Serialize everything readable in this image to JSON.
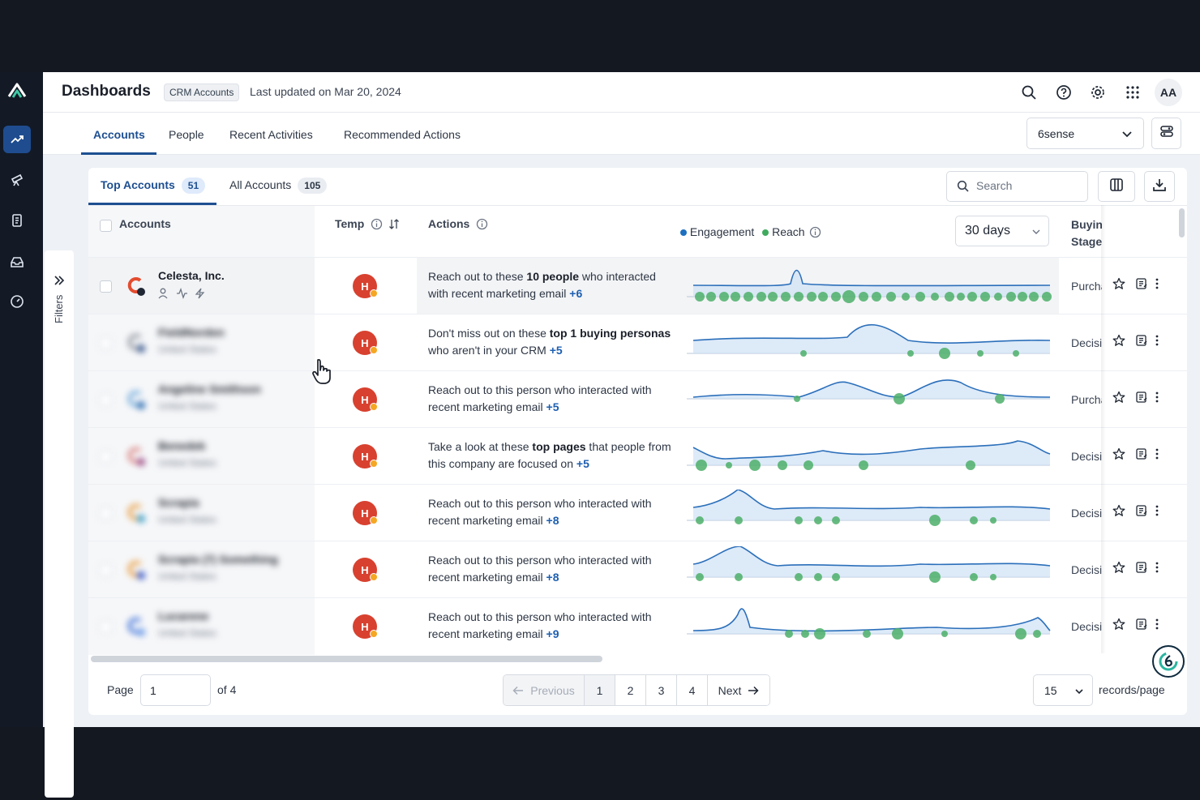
{
  "app": {
    "title": "Dashboards",
    "crm_badge": "CRM Accounts",
    "last_updated": "Last updated on Mar 20, 2024",
    "avatar_initials": "AA"
  },
  "nav_tabs": [
    "Accounts",
    "People",
    "Recent Activities",
    "Recommended Actions"
  ],
  "org_select": "6sense",
  "filters_label": "Filters",
  "account_tabs": [
    {
      "label": "Top Accounts",
      "count": "51"
    },
    {
      "label": "All Accounts",
      "count": "105"
    }
  ],
  "search_placeholder": "Search",
  "columns": {
    "accounts": "Accounts",
    "temp": "Temp",
    "actions": "Actions",
    "engagement": "Engagement",
    "reach": "Reach",
    "range": "30 days",
    "stage_line1": "Buying",
    "stage_line2": "Stage"
  },
  "colors": {
    "engagement": "#1d6fbf",
    "reach": "#3faa5e",
    "hot": "#d8412f",
    "accent": "#1d4f91"
  },
  "rows": [
    {
      "name": "Celesta, Inc.",
      "sub": "",
      "temp": "H",
      "action_pre": "Reach out to these ",
      "action_bold": "10 people",
      "action_post": " who interacted with recent marketing email ",
      "plus": "+6",
      "stage": "Purchase"
    },
    {
      "name": "FieldNorden",
      "sub": "United States",
      "temp": "H",
      "action_pre": "Don't miss out on these ",
      "action_bold": "top 1 buying personas",
      "action_post": " who aren't in your CRM ",
      "plus": "+5",
      "stage": "Decision"
    },
    {
      "name": "Angeline Smithson",
      "sub": "United States",
      "temp": "H",
      "action_pre": "Reach out to this person who interacted with recent marketing email ",
      "action_bold": "",
      "action_post": "",
      "plus": "+5",
      "stage": "Purchase"
    },
    {
      "name": "Benedek",
      "sub": "United States",
      "temp": "H",
      "action_pre": "Take a look at these ",
      "action_bold": "top pages",
      "action_post": " that people from this company are focused on ",
      "plus": "+5",
      "stage": "Decision"
    },
    {
      "name": "Scrapia",
      "sub": "United States",
      "temp": "H",
      "action_pre": "Reach out to this person who interacted with recent marketing email ",
      "action_bold": "",
      "action_post": "",
      "plus": "+8",
      "stage": "Decision"
    },
    {
      "name": "Scrapia (7) Something",
      "sub": "United States",
      "temp": "H",
      "action_pre": "Reach out to this person who interacted with recent marketing email ",
      "action_bold": "",
      "action_post": "",
      "plus": "+8",
      "stage": "Decision"
    },
    {
      "name": "Lucarene",
      "sub": "United States",
      "temp": "H",
      "action_pre": "Reach out to this person who interacted with recent marketing email ",
      "action_bold": "",
      "action_post": "",
      "plus": "+9",
      "stage": "Decision"
    }
  ],
  "pagination": {
    "page_label": "Page",
    "page_value": "1",
    "of_label": "of 4",
    "previous": "Previous",
    "pages": [
      "1",
      "2",
      "3",
      "4"
    ],
    "next": "Next",
    "per_page": "15",
    "per_page_label": "records/page"
  }
}
